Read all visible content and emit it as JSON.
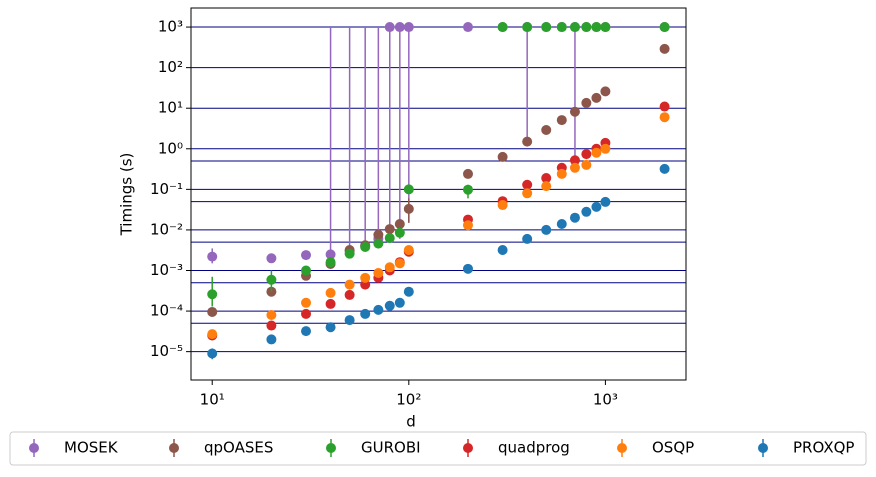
{
  "chart_data": {
    "type": "scatter",
    "x_label": "d",
    "y_label": "Timings (s)",
    "log_x": true,
    "log_y": true,
    "xlim": [
      7.8,
      2570
    ],
    "ylim": [
      2e-06,
      2950
    ],
    "xticks": [
      {
        "value": 10,
        "label": "10¹"
      },
      {
        "value": 100,
        "label": "10²"
      },
      {
        "value": 1000,
        "label": "10³"
      }
    ],
    "yticks": [
      {
        "value": 1e-05,
        "label": "10⁻⁵"
      },
      {
        "value": 0.0001,
        "label": "10⁻⁴"
      },
      {
        "value": 0.001,
        "label": "10⁻³"
      },
      {
        "value": 0.01,
        "label": "10⁻²"
      },
      {
        "value": 0.1,
        "label": "10⁻¹"
      },
      {
        "value": 1,
        "label": "10⁰"
      },
      {
        "value": 10,
        "label": "10¹"
      },
      {
        "value": 100,
        "label": "10²"
      },
      {
        "value": 1000,
        "label": "10³"
      }
    ],
    "grid_lines": [
      1000,
      100,
      10,
      1,
      0.5,
      0.1,
      0.05,
      0.01,
      0.005,
      0.001,
      0.0005,
      0.0001,
      5e-05,
      1e-05
    ],
    "grid_color": "#000080",
    "legend": "bottom",
    "x": [
      10,
      20,
      30,
      40,
      50,
      60,
      70,
      80,
      90,
      100,
      200,
      300,
      400,
      500,
      600,
      700,
      800,
      900,
      1000,
      2000
    ],
    "series": [
      {
        "name": "MOSEK",
        "color": "#9467bd",
        "values": [
          0.0022,
          0.002,
          0.0024,
          0.0025,
          0.003,
          0.004,
          0.006,
          1000,
          1000,
          1000,
          1000,
          1000,
          1000,
          1000,
          1000,
          1000,
          1000,
          1000,
          1000,
          1000
        ],
        "err_low": [
          0.0015,
          0.0016,
          null,
          0.002,
          0.0025,
          0.0033,
          0.005,
          0.007,
          0.006,
          0.015,
          null,
          null,
          1.3,
          null,
          null,
          0.5,
          null,
          null,
          null,
          null
        ],
        "err_high": [
          0.0035,
          0.0025,
          null,
          1000,
          1000,
          1000,
          1000,
          1000,
          1000,
          1000,
          null,
          null,
          1000,
          null,
          null,
          1000,
          null,
          null,
          null,
          null
        ]
      },
      {
        "name": "qpOASES",
        "color": "#8c564b",
        "values": [
          9.5e-05,
          0.0003,
          0.00074,
          0.00145,
          0.0032,
          0.0042,
          0.0076,
          0.0105,
          0.014,
          0.033,
          0.24,
          0.63,
          1.5,
          2.9,
          5.1,
          8.2,
          13.5,
          18,
          26,
          290
        ],
        "err_low": [
          null,
          null,
          null,
          null,
          null,
          null,
          null,
          null,
          null,
          0.015,
          null,
          null,
          null,
          null,
          null,
          null,
          null,
          null,
          null,
          null
        ],
        "err_high": [
          null,
          null,
          null,
          null,
          null,
          null,
          null,
          null,
          null,
          0.06,
          null,
          null,
          null,
          null,
          null,
          null,
          null,
          null,
          null,
          null
        ]
      },
      {
        "name": "GUROBI",
        "color": "#2ca02c",
        "values": [
          0.00026,
          0.00059,
          0.001,
          0.0016,
          0.0026,
          0.0038,
          0.0046,
          0.0063,
          0.0085,
          0.1,
          0.098,
          1000,
          1000,
          1000,
          1000,
          1000,
          1000,
          1000,
          1000,
          1000
        ],
        "err_low": [
          0.00013,
          0.0003,
          null,
          null,
          null,
          null,
          null,
          null,
          null,
          null,
          0.06,
          null,
          null,
          null,
          null,
          null,
          null,
          null,
          null,
          null
        ],
        "err_high": [
          0.0007,
          0.001,
          null,
          null,
          null,
          null,
          null,
          null,
          null,
          null,
          0.13,
          null,
          null,
          null,
          null,
          null,
          null,
          null,
          null,
          null
        ]
      },
      {
        "name": "quadprog",
        "color": "#d62728",
        "values": [
          2.5e-05,
          4.4e-05,
          8.5e-05,
          0.00015,
          0.00025,
          0.00045,
          0.00066,
          0.001,
          0.0016,
          0.0029,
          0.018,
          0.051,
          0.13,
          0.19,
          0.34,
          0.52,
          0.74,
          1.0,
          1.4,
          11
        ]
      },
      {
        "name": "OSQP",
        "color": "#ff7f0e",
        "values": [
          2.7e-05,
          8e-05,
          0.00016,
          0.00028,
          0.00045,
          0.00066,
          0.00087,
          0.0012,
          0.0015,
          0.0032,
          0.013,
          0.041,
          0.08,
          0.12,
          0.24,
          0.34,
          0.4,
          0.8,
          1.0,
          6
        ]
      },
      {
        "name": "PROXQP",
        "color": "#1f77b4",
        "values": [
          9e-06,
          2e-05,
          3.2e-05,
          4e-05,
          6e-05,
          8.5e-05,
          0.000107,
          0.000135,
          0.00016,
          0.0003,
          0.0011,
          0.0032,
          0.006,
          0.01,
          0.014,
          0.02,
          0.028,
          0.037,
          0.049,
          0.32
        ],
        "err_low": [
          6.5e-06,
          null,
          null,
          null,
          null,
          null,
          null,
          null,
          null,
          null,
          null,
          null,
          null,
          null,
          null,
          null,
          null,
          null,
          null,
          null
        ],
        "err_high": [
          1.2e-05,
          null,
          null,
          null,
          null,
          null,
          null,
          null,
          null,
          null,
          null,
          null,
          null,
          null,
          null,
          null,
          null,
          null,
          null,
          null
        ]
      }
    ]
  }
}
